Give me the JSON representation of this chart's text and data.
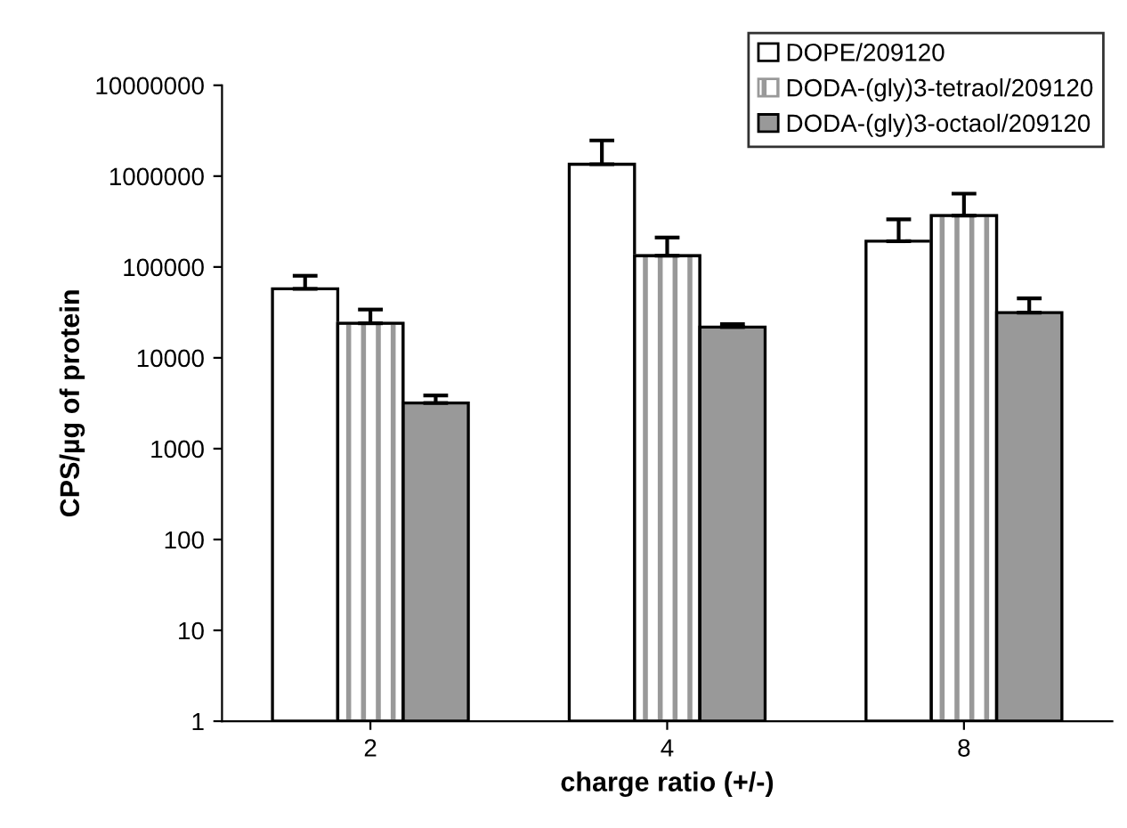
{
  "chart_data": {
    "type": "bar",
    "xlabel": "charge ratio (+/-)",
    "ylabel": "CPS/µg of protein",
    "categories": [
      "2",
      "4",
      "8"
    ],
    "log": "y",
    "ylim": [
      1,
      10000000
    ],
    "yticks": [
      {
        "value": 1,
        "label": "1"
      },
      {
        "value": 10,
        "label": "10"
      },
      {
        "value": 100,
        "label": "100"
      },
      {
        "value": 1000,
        "label": "1000"
      },
      {
        "value": 10000,
        "label": "10000"
      },
      {
        "value": 100000,
        "label": "100000"
      },
      {
        "value": 1000000,
        "label": "1000000"
      },
      {
        "value": 10000000,
        "label": "10000000"
      }
    ],
    "grid": false,
    "legend": "top right",
    "series": [
      {
        "name": "DOPE/209120",
        "color": "#ffffff",
        "values": [
          57400,
          1350000,
          192000
        ],
        "errors": [
          [
            57400,
            80000
          ],
          [
            1350000,
            2470000
          ],
          [
            192000,
            334000
          ]
        ]
      },
      {
        "name": "DODA-(gly)3-tetraol/209120",
        "color": "#999999",
        "values": [
          24000,
          133000,
          368000
        ],
        "errors": [
          [
            24000,
            34000
          ],
          [
            133000,
            211000
          ],
          [
            368000,
            641000
          ]
        ]
      },
      {
        "name": "DODA-(gly)3-octaol/209120",
        "color": "#999999",
        "values": [
          3180,
          21800,
          31400
        ],
        "errors": [
          [
            3180,
            3850
          ],
          [
            21800,
            23500
          ],
          [
            31400,
            45200
          ]
        ]
      }
    ]
  }
}
